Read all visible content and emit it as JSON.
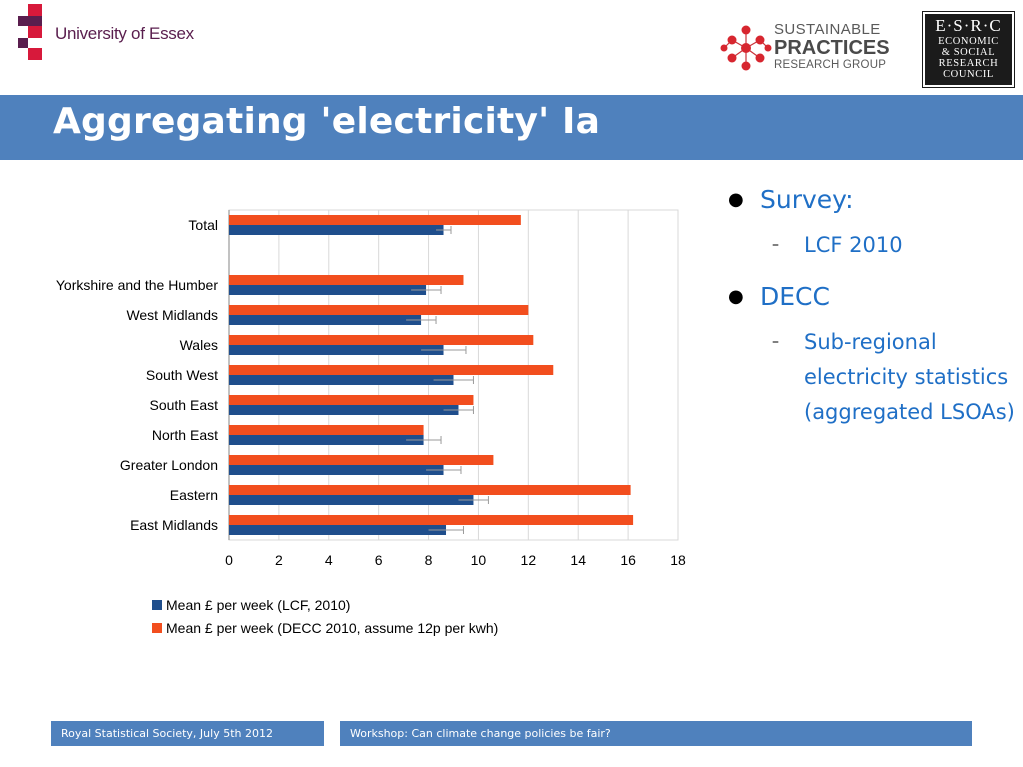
{
  "header": {
    "university_logo_text": "University of Essex",
    "spr_logo": {
      "line1": "SUSTAINABLE",
      "line2": "PRACTICES",
      "line3": "RESEARCH GROUP"
    },
    "esrc_logo": {
      "line1": "E·S·R·C",
      "line2": "ECONOMIC",
      "line3": "& SOCIAL",
      "line4": "RESEARCH",
      "line5": "COUNCIL"
    },
    "brand_color": "#4f81bd"
  },
  "title": "Aggregating 'electricity' Ia",
  "chart_data": {
    "type": "bar",
    "orientation": "horizontal",
    "categories": [
      "Total",
      "",
      "Yorkshire and the Humber",
      "West Midlands",
      "Wales",
      "South West",
      "South East",
      "North East",
      "Greater London",
      "Eastern",
      "East Midlands"
    ],
    "series": [
      {
        "name": "Mean £ per week (LCF, 2010)",
        "color": "#1f4e8c",
        "values": [
          8.6,
          null,
          7.9,
          7.7,
          8.6,
          9.0,
          9.2,
          7.8,
          8.6,
          9.8,
          8.7
        ],
        "error": [
          0.3,
          null,
          0.6,
          0.6,
          0.9,
          0.8,
          0.6,
          0.7,
          0.7,
          0.6,
          0.7
        ]
      },
      {
        "name": "Mean £ per week (DECC 2010, assume 12p per kwh)",
        "color": "#f24e1e",
        "values": [
          11.7,
          null,
          9.4,
          12.0,
          12.2,
          13.0,
          9.8,
          7.8,
          10.6,
          16.1,
          16.2
        ]
      }
    ],
    "xlim": [
      0,
      18
    ],
    "xticks": [
      0,
      2,
      4,
      6,
      8,
      10,
      12,
      14,
      16,
      18
    ],
    "legend_position": "bottom"
  },
  "bullets": [
    {
      "level": 1,
      "text": "Survey:"
    },
    {
      "level": 2,
      "text": "LCF 2010"
    },
    {
      "level": 1,
      "text": "DECC"
    },
    {
      "level": 2,
      "text": "Sub-regional electricity statistics (aggregated LSOAs)"
    }
  ],
  "footer": {
    "left": "Royal Statistical Society, July 5th 2012",
    "right": "Workshop: Can climate change policies be fair?"
  }
}
